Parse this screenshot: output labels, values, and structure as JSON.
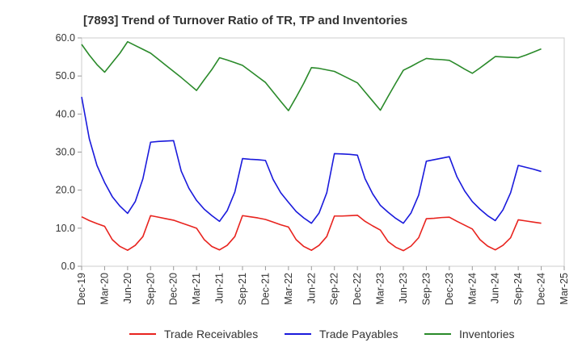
{
  "chart_data": {
    "type": "line",
    "title": "[7893]  Trend of Turnover Ratio of TR, TP and Inventories",
    "xlabel": "",
    "ylabel": "",
    "ylim": [
      0,
      60
    ],
    "yticks": [
      "0.0",
      "10.0",
      "20.0",
      "30.0",
      "40.0",
      "50.0",
      "60.0"
    ],
    "xtick_labels": [
      "Dec-19",
      "Mar-20",
      "Jun-20",
      "Sep-20",
      "Dec-20",
      "Mar-21",
      "Jun-21",
      "Sep-21",
      "Dec-21",
      "Mar-22",
      "Jun-22",
      "Sep-22",
      "Dec-22",
      "Mar-23",
      "Jun-23",
      "Sep-23",
      "Dec-23",
      "Mar-24",
      "Jun-24",
      "Sep-24",
      "Dec-24",
      "Mar-25"
    ],
    "grid": false,
    "legend_position": "bottom",
    "months": [
      "Dec-19",
      "Jan-20",
      "Feb-20",
      "Mar-20",
      "Apr-20",
      "May-20",
      "Jun-20",
      "Jul-20",
      "Aug-20",
      "Sep-20",
      "Oct-20",
      "Nov-20",
      "Dec-20",
      "Jan-21",
      "Feb-21",
      "Mar-21",
      "Apr-21",
      "May-21",
      "Jun-21",
      "Jul-21",
      "Aug-21",
      "Sep-21",
      "Oct-21",
      "Nov-21",
      "Dec-21",
      "Jan-22",
      "Feb-22",
      "Mar-22",
      "Apr-22",
      "May-22",
      "Jun-22",
      "Jul-22",
      "Aug-22",
      "Sep-22",
      "Oct-22",
      "Nov-22",
      "Dec-22",
      "Jan-23",
      "Feb-23",
      "Mar-23",
      "Apr-23",
      "May-23",
      "Jun-23",
      "Jul-23",
      "Aug-23",
      "Sep-23",
      "Oct-23",
      "Nov-23",
      "Dec-23",
      "Jan-24",
      "Feb-24",
      "Mar-24",
      "Apr-24",
      "May-24",
      "Jun-24",
      "Jul-24",
      "Aug-24",
      "Sep-24",
      "Oct-24",
      "Nov-24",
      "Dec-24"
    ],
    "series": [
      {
        "name": "Trade Receivables",
        "color": "#e8231e",
        "values": [
          13.0,
          12.0,
          11.2,
          10.5,
          7.0,
          5.2,
          4.2,
          5.5,
          7.8,
          13.3,
          12.9,
          12.5,
          12.1,
          11.4,
          10.7,
          10.0,
          7.0,
          5.2,
          4.3,
          5.5,
          7.8,
          13.3,
          13.0,
          12.7,
          12.3,
          11.6,
          10.9,
          10.3,
          7.0,
          5.2,
          4.2,
          5.5,
          7.8,
          13.2,
          13.2,
          13.3,
          13.4,
          11.8,
          10.6,
          9.5,
          6.5,
          5.0,
          4.1,
          5.3,
          7.5,
          12.5,
          12.6,
          12.8,
          12.9,
          11.8,
          10.8,
          9.8,
          7.0,
          5.3,
          4.3,
          5.5,
          7.5,
          12.2,
          11.9,
          11.6,
          11.3
        ]
      },
      {
        "name": "Trade Payables",
        "color": "#1a1adc",
        "values": [
          44.5,
          33.5,
          26.5,
          22.0,
          18.3,
          15.8,
          13.9,
          17.0,
          23.0,
          32.6,
          32.8,
          32.9,
          33.0,
          25.0,
          20.5,
          17.3,
          15.0,
          13.3,
          11.8,
          14.6,
          19.5,
          28.3,
          28.1,
          28.0,
          27.8,
          22.8,
          19.3,
          16.8,
          14.4,
          12.7,
          11.3,
          14.0,
          19.3,
          29.6,
          29.5,
          29.4,
          29.2,
          23.0,
          19.0,
          16.0,
          14.2,
          12.6,
          11.3,
          14.0,
          18.7,
          27.6,
          28.0,
          28.4,
          28.8,
          23.5,
          19.8,
          17.0,
          15.0,
          13.3,
          12.0,
          14.8,
          19.3,
          26.5,
          26.0,
          25.5,
          24.9
        ]
      },
      {
        "name": "Inventories",
        "color": "#2a8a2a",
        "values": [
          58.3,
          55.5,
          53.0,
          51.0,
          53.5,
          56.0,
          59.0,
          58.0,
          57.0,
          56.0,
          54.4,
          52.8,
          51.2,
          49.6,
          47.9,
          46.2,
          49.0,
          51.7,
          54.8,
          54.2,
          53.5,
          52.8,
          51.3,
          49.8,
          48.3,
          45.8,
          43.3,
          40.9,
          44.4,
          48.1,
          52.2,
          52.0,
          51.6,
          51.2,
          50.2,
          49.2,
          48.2,
          45.8,
          43.4,
          41.0,
          44.6,
          48.1,
          51.5,
          52.5,
          53.6,
          54.6,
          54.4,
          54.3,
          54.1,
          53.0,
          51.8,
          50.7,
          52.1,
          53.6,
          55.1,
          55.0,
          54.9,
          54.8,
          55.5,
          56.3,
          57.1
        ]
      }
    ]
  }
}
